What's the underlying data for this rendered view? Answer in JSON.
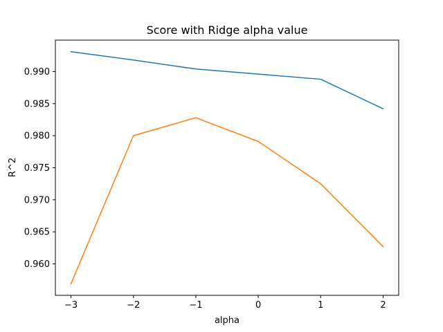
{
  "chart_data": {
    "type": "line",
    "title": "Score with Ridge alpha value",
    "xlabel": "alpha",
    "ylabel": "R^2",
    "x": [
      -3,
      -2,
      -1,
      0,
      1,
      2
    ],
    "series": [
      {
        "color": "#1f77b4",
        "values": [
          0.9931,
          0.9918,
          0.9904,
          0.9896,
          0.9888,
          0.9842
        ]
      },
      {
        "color": "#ff7f0e",
        "values": [
          0.9569,
          0.98,
          0.9828,
          0.9791,
          0.9725,
          0.9627
        ]
      }
    ],
    "xlim": [
      -3.25,
      2.25
    ],
    "ylim": [
      0.9551,
      0.9949
    ],
    "xticks": [
      -3,
      -2,
      -1,
      0,
      1,
      2
    ],
    "xtick_labels": [
      "−3",
      "−2",
      "−1",
      "0",
      "1",
      "2"
    ],
    "yticks": [
      0.96,
      0.965,
      0.97,
      0.975,
      0.98,
      0.985,
      0.99
    ],
    "ytick_labels": [
      "0.960",
      "0.965",
      "0.970",
      "0.975",
      "0.980",
      "0.985",
      "0.990"
    ],
    "grid": false,
    "legend": "none"
  }
}
